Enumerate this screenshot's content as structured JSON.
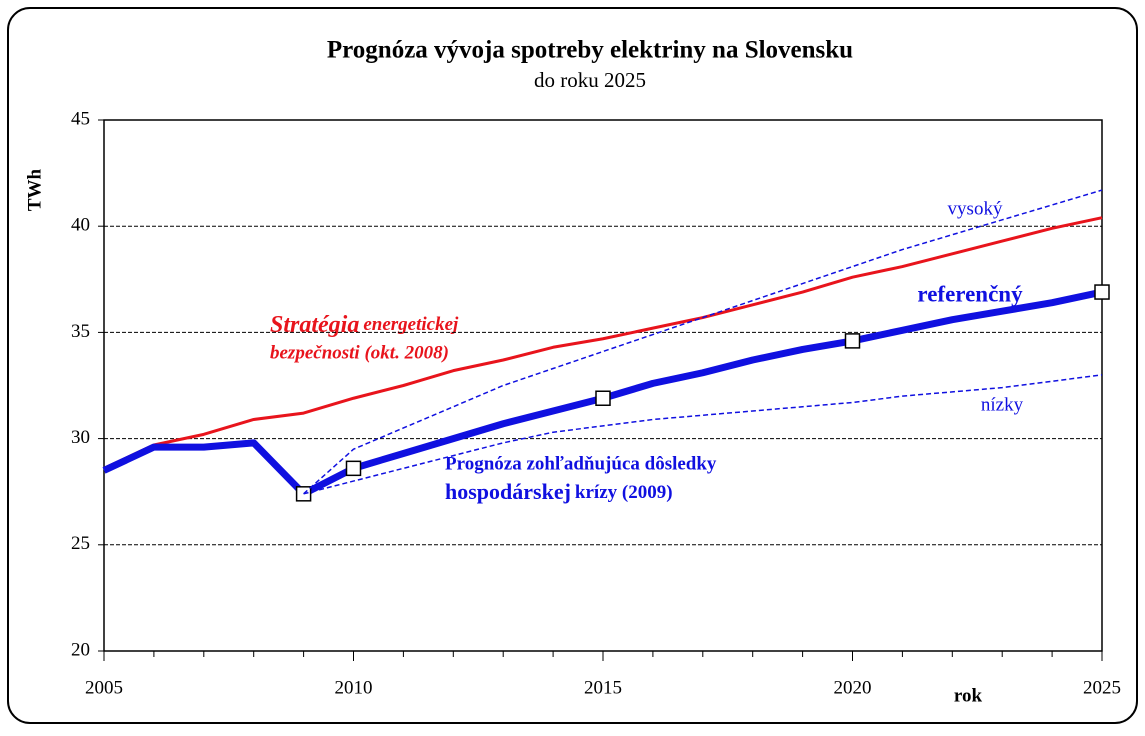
{
  "chart_data": {
    "type": "line",
    "title": "Prognóza vývoja spotreby elektriny na Slovensku",
    "subtitle": "do roku 2025",
    "y_label": "TWh",
    "x_label": "rok",
    "x": [
      2005,
      2006,
      2007,
      2008,
      2009,
      2010,
      2011,
      2012,
      2013,
      2014,
      2015,
      2016,
      2017,
      2018,
      2019,
      2020,
      2021,
      2022,
      2023,
      2024,
      2025
    ],
    "series": [
      {
        "color": "#e8141c",
        "style": "solid",
        "width": 3,
        "values": [
          28.6,
          29.7,
          30.2,
          30.9,
          31.2,
          31.9,
          32.5,
          33.2,
          33.7,
          34.3,
          34.7,
          35.2,
          35.7,
          36.3,
          36.9,
          37.6,
          38.1,
          38.7,
          39.3,
          39.9,
          40.4
        ]
      },
      {
        "name": "referenčný",
        "color": "#1010e0",
        "style": "solid",
        "width": 7,
        "markers": [
          2009,
          2010,
          2015,
          2020,
          2025
        ],
        "values": [
          28.5,
          29.6,
          29.6,
          29.8,
          27.4,
          28.6,
          29.3,
          30.0,
          30.7,
          31.3,
          31.9,
          32.6,
          33.1,
          33.7,
          34.2,
          34.6,
          35.1,
          35.6,
          36.0,
          36.4,
          36.9
        ]
      },
      {
        "name": "vysoký",
        "color": "#1010e0",
        "style": "dashed",
        "width": 1.5,
        "values": [
          null,
          null,
          null,
          null,
          27.4,
          29.5,
          30.5,
          31.5,
          32.5,
          33.3,
          34.1,
          34.9,
          35.7,
          36.5,
          37.3,
          38.1,
          38.9,
          39.6,
          40.3,
          41.0,
          41.7
        ]
      },
      {
        "name": "nízky",
        "color": "#1010e0",
        "style": "dashed",
        "width": 1.5,
        "values": [
          null,
          null,
          null,
          null,
          27.4,
          28.0,
          28.6,
          29.2,
          29.8,
          30.3,
          30.6,
          30.9,
          31.1,
          31.3,
          31.5,
          31.7,
          32.0,
          32.2,
          32.4,
          32.7,
          33.0
        ]
      }
    ],
    "annotations": [
      {
        "lines": [
          [
            "Stratégia",
            "energetickej"
          ],
          [
            "bezpečnosti (okt. 2008)"
          ]
        ],
        "color": "#e8141c"
      },
      {
        "lines": [
          [
            "Prognóza zohľadňujúca dôsledky"
          ],
          [
            "hospodárskej",
            "krízy (2009)"
          ]
        ],
        "color": "#1010e0"
      }
    ],
    "xlim": [
      2005,
      2025
    ],
    "xticks": [
      2005,
      2010,
      2015,
      2020,
      2025
    ],
    "ylim": [
      20,
      45
    ],
    "yticks": [
      20,
      25,
      30,
      35,
      40,
      45
    ],
    "grid": true
  }
}
